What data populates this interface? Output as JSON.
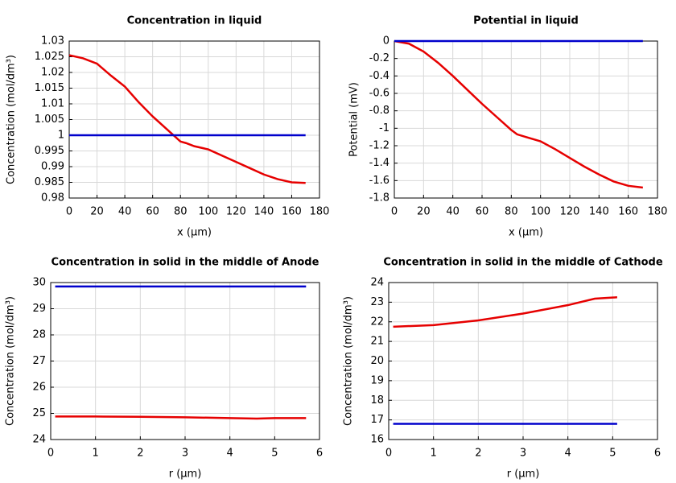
{
  "chart_data": [
    {
      "type": "line",
      "title": "Concentration in liquid",
      "xlabel": "x (µm)",
      "ylabel": "Concentration (mol/dm³)",
      "x": [
        0,
        10,
        20,
        30,
        40,
        50,
        60,
        70,
        80,
        84,
        90,
        100,
        110,
        120,
        130,
        140,
        150,
        160,
        170
      ],
      "series": [
        {
          "color": "#e60000",
          "values": [
            1.0255,
            1.0245,
            1.0228,
            1.019,
            1.0155,
            1.0105,
            1.006,
            1.002,
            0.998,
            0.9975,
            0.9965,
            0.9955,
            0.9935,
            0.9915,
            0.9895,
            0.9875,
            0.986,
            0.985,
            0.9848
          ]
        },
        {
          "color": "#0000cc",
          "values": [
            1,
            1,
            1,
            1,
            1,
            1,
            1,
            1,
            1,
            1,
            1,
            1,
            1,
            1,
            1,
            1,
            1,
            1,
            1
          ]
        }
      ],
      "xlim": [
        0,
        180
      ],
      "xticks": [
        0,
        20,
        40,
        60,
        80,
        100,
        120,
        140,
        160,
        180
      ],
      "ylim": [
        0.98,
        1.03
      ],
      "yticks": [
        0.98,
        0.985,
        0.99,
        0.995,
        1,
        1.005,
        1.01,
        1.015,
        1.02,
        1.025,
        1.03
      ],
      "grid": true
    },
    {
      "type": "line",
      "title": "Potential in liquid",
      "xlabel": "x (µm)",
      "ylabel": "Potential (mV)",
      "x": [
        0,
        10,
        20,
        30,
        40,
        50,
        60,
        70,
        80,
        84,
        90,
        100,
        110,
        120,
        130,
        140,
        150,
        160,
        170
      ],
      "series": [
        {
          "color": "#e60000",
          "values": [
            0,
            -0.03,
            -0.12,
            -0.25,
            -0.4,
            -0.56,
            -0.72,
            -0.87,
            -1.02,
            -1.07,
            -1.1,
            -1.15,
            -1.24,
            -1.34,
            -1.44,
            -1.53,
            -1.61,
            -1.66,
            -1.68
          ]
        },
        {
          "color": "#0000cc",
          "values": [
            0,
            0,
            0,
            0,
            0,
            0,
            0,
            0,
            0,
            0,
            0,
            0,
            0,
            0,
            0,
            0,
            0,
            0,
            0
          ]
        }
      ],
      "xlim": [
        0,
        180
      ],
      "xticks": [
        0,
        20,
        40,
        60,
        80,
        100,
        120,
        140,
        160,
        180
      ],
      "ylim": [
        -1.8,
        0
      ],
      "yticks": [
        -1.8,
        -1.6,
        -1.4,
        -1.2,
        -1,
        -0.8,
        -0.6,
        -0.4,
        -0.2,
        0
      ],
      "grid": true
    },
    {
      "type": "line",
      "title": "Concentration in solid in the middle of Anode",
      "xlabel": "r (µm)",
      "ylabel": "Concentration (mol/dm³)",
      "x": [
        0.1,
        1,
        2,
        3,
        4,
        4.6,
        5,
        5.7
      ],
      "series": [
        {
          "color": "#e60000",
          "values": [
            24.88,
            24.88,
            24.87,
            24.85,
            24.82,
            24.8,
            24.82,
            24.82
          ]
        },
        {
          "color": "#0000cc",
          "values": [
            29.85,
            29.85,
            29.85,
            29.85,
            29.85,
            29.85,
            29.85,
            29.85
          ]
        }
      ],
      "xlim": [
        0,
        6
      ],
      "xticks": [
        0,
        1,
        2,
        3,
        4,
        5,
        6
      ],
      "ylim": [
        24,
        30
      ],
      "yticks": [
        24,
        25,
        26,
        27,
        28,
        29,
        30
      ],
      "grid": true
    },
    {
      "type": "line",
      "title": "Concentration in solid in the middle of Cathode",
      "xlabel": "r (µm)",
      "ylabel": "Concentration (mol/dm³)",
      "x": [
        0.1,
        1,
        2,
        3,
        4,
        4.6,
        5.1
      ],
      "series": [
        {
          "color": "#e60000",
          "values": [
            21.75,
            21.83,
            22.07,
            22.42,
            22.85,
            23.18,
            23.25
          ]
        },
        {
          "color": "#0000cc",
          "values": [
            16.8,
            16.8,
            16.8,
            16.8,
            16.8,
            16.8,
            16.8
          ]
        }
      ],
      "xlim": [
        0,
        6
      ],
      "xticks": [
        0,
        1,
        2,
        3,
        4,
        5,
        6
      ],
      "ylim": [
        16,
        24
      ],
      "yticks": [
        16,
        17,
        18,
        19,
        20,
        21,
        22,
        23,
        24
      ],
      "grid": true
    }
  ]
}
